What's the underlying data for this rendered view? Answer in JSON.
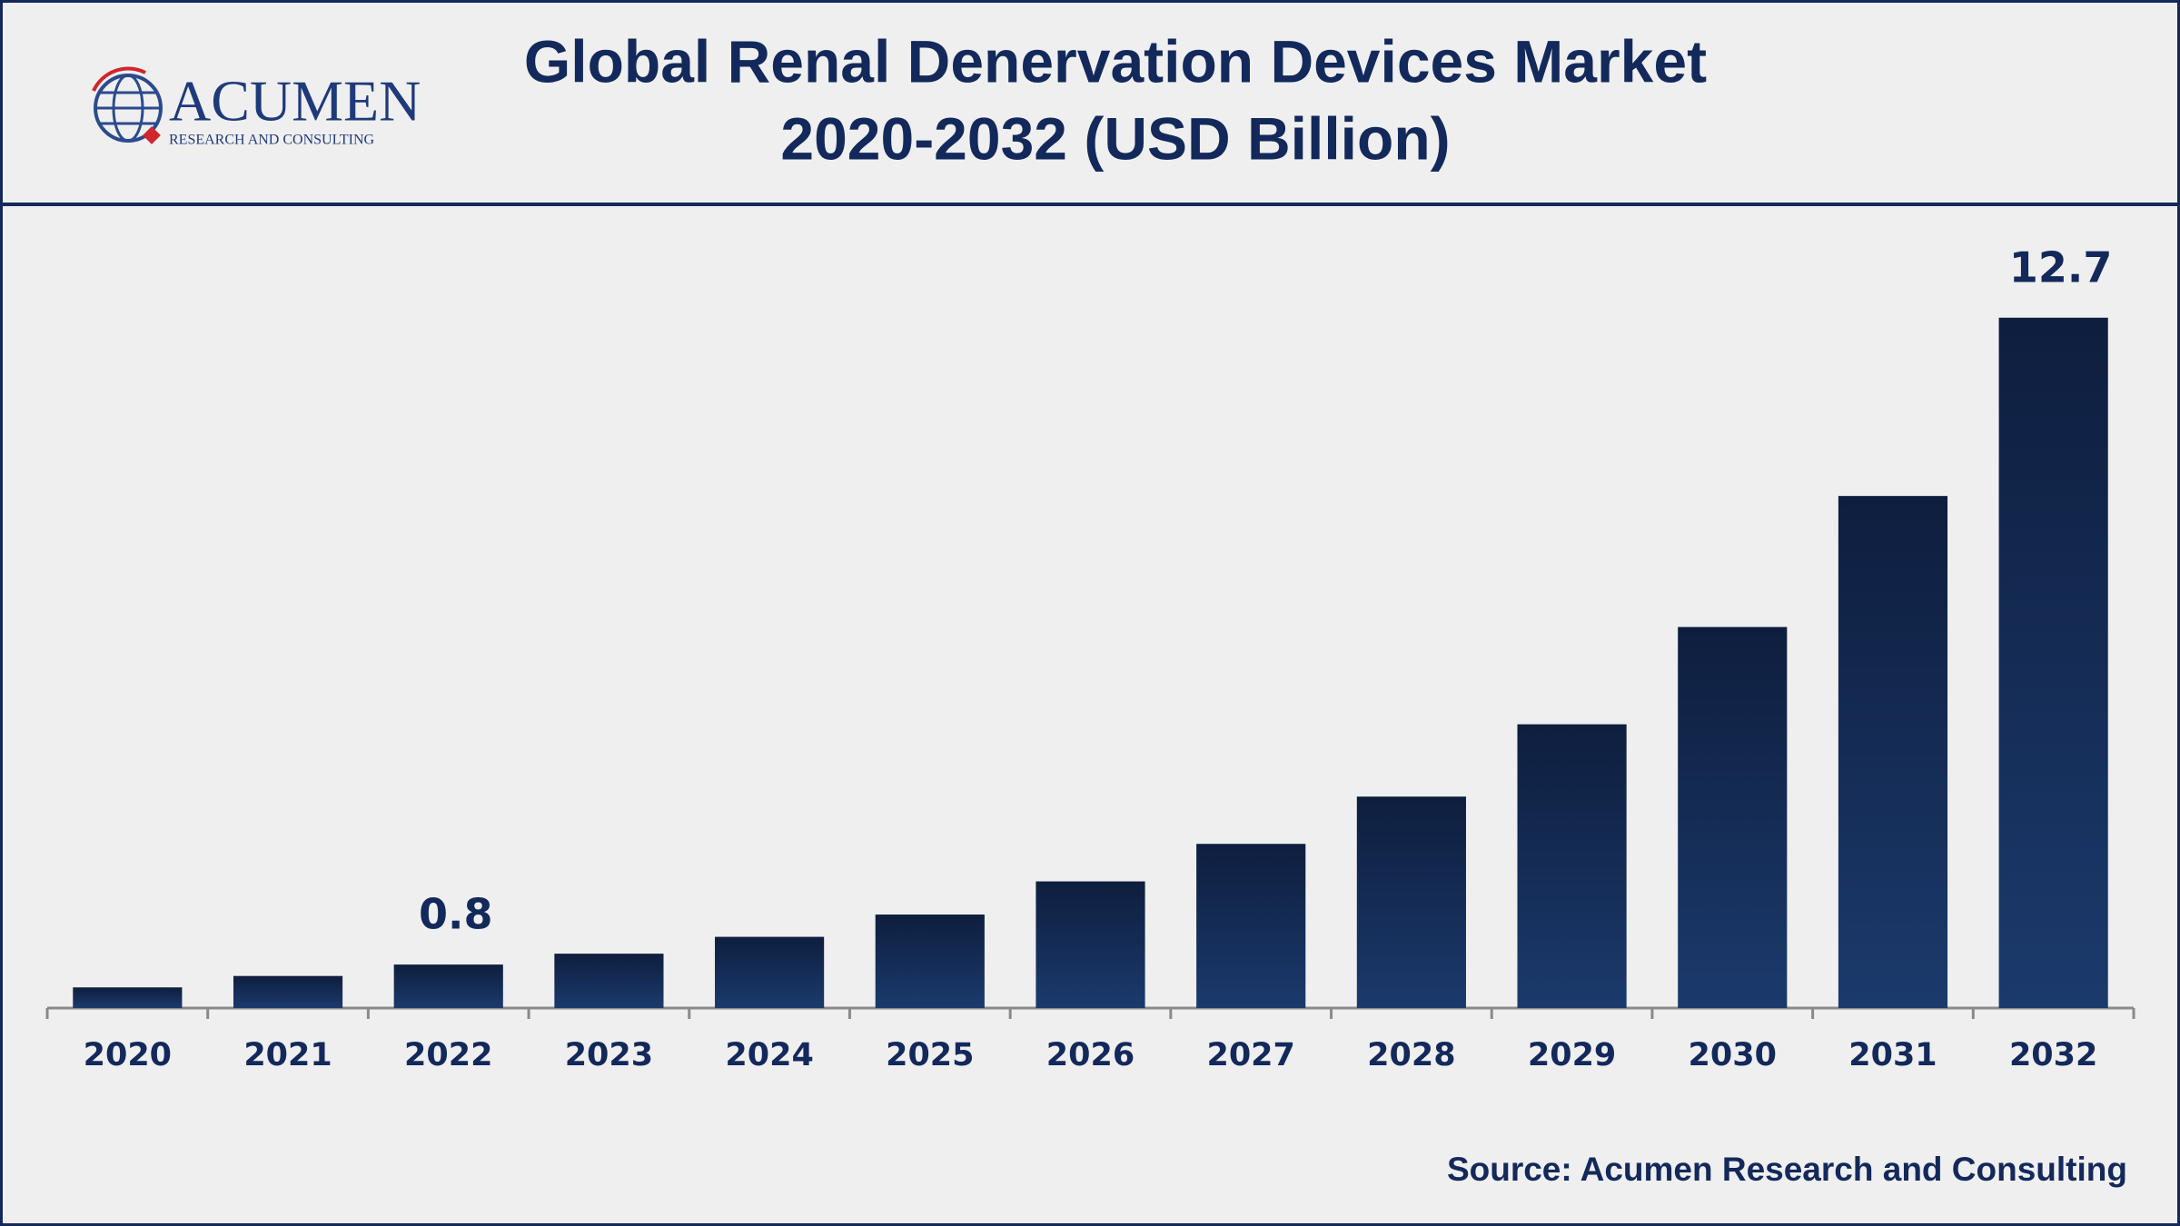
{
  "logo": {
    "name": "ACUMEN",
    "tagline": "RESEARCH AND CONSULTING"
  },
  "chart_data": {
    "type": "bar",
    "title": "Global Renal Denervation Devices Market",
    "subtitle": "2020-2032 (USD Billion)",
    "source": "Source: Acumen Research and Consulting",
    "categories": [
      "2020",
      "2021",
      "2022",
      "2023",
      "2024",
      "2025",
      "2026",
      "2027",
      "2028",
      "2029",
      "2030",
      "2031",
      "2032"
    ],
    "values": [
      0.38,
      0.59,
      0.8,
      1.0,
      1.31,
      1.72,
      2.33,
      3.02,
      3.89,
      5.22,
      7.01,
      9.42,
      12.7
    ],
    "show_value_labels": [
      false,
      false,
      true,
      false,
      false,
      false,
      false,
      false,
      false,
      false,
      false,
      false,
      true
    ],
    "color": "#1a3566",
    "ylim": [
      0,
      14
    ],
    "grid": false
  }
}
